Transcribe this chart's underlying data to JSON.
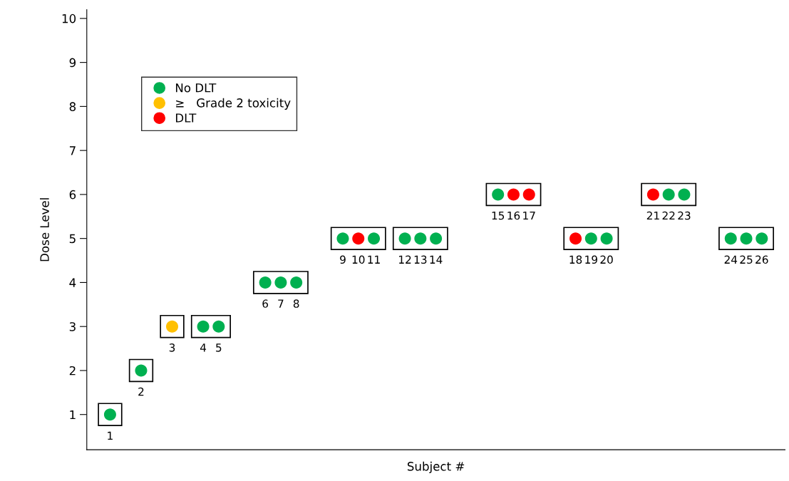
{
  "chart_data": {
    "type": "scatter",
    "xlabel": "Subject #",
    "ylabel": "Dose Level",
    "categories": [
      null,
      null,
      null,
      null,
      null,
      null,
      null,
      null,
      null,
      null,
      null,
      null,
      null,
      null,
      null,
      null,
      null,
      null,
      null,
      null,
      null,
      null,
      null,
      null,
      null,
      null,
      null,
      null,
      null,
      null,
      null,
      null,
      null,
      null,
      null,
      null,
      null,
      null,
      null,
      null,
      null,
      null,
      null,
      null,
      null
    ],
    "ylim": [
      0.2,
      10.2
    ],
    "yticks": [
      1,
      2,
      3,
      4,
      5,
      6,
      7,
      8,
      9,
      10
    ],
    "tick_labels": "y",
    "grid": false,
    "legend": "top left",
    "marker": "circle",
    "series": [
      {
        "name": "No DLT",
        "color": "#00b050",
        "values": [
          null,
          1,
          null,
          2,
          null,
          null,
          null,
          3,
          3,
          null,
          null,
          4,
          4,
          4,
          null,
          null,
          5,
          null,
          5,
          null,
          5,
          5,
          5,
          null,
          null,
          null,
          6,
          null,
          null,
          null,
          null,
          null,
          5,
          5,
          null,
          null,
          null,
          6,
          6,
          null,
          null,
          5,
          5,
          5,
          null
        ]
      },
      {
        "name": "≥   Grade 2 toxicity",
        "color": "#ffc000",
        "values": [
          null,
          null,
          null,
          null,
          null,
          3,
          null,
          null,
          null,
          null,
          null,
          null,
          null,
          null,
          null,
          null,
          null,
          null,
          null,
          null,
          null,
          null,
          null,
          null,
          null,
          null,
          null,
          null,
          null,
          null,
          null,
          null,
          null,
          null,
          null,
          null,
          null,
          null,
          null,
          null,
          null,
          null,
          null,
          null,
          null
        ]
      },
      {
        "name": "DLT",
        "color": "#ff0000",
        "values": [
          null,
          null,
          null,
          null,
          null,
          null,
          null,
          null,
          null,
          null,
          null,
          null,
          null,
          null,
          null,
          null,
          null,
          5,
          null,
          null,
          null,
          null,
          null,
          null,
          null,
          null,
          null,
          6,
          6,
          null,
          null,
          5,
          null,
          null,
          null,
          null,
          6,
          null,
          null,
          null,
          null,
          null,
          null,
          null,
          null
        ]
      }
    ],
    "annotations": [
      {
        "text": "1",
        "y": 1
      },
      {
        "text": "2",
        "y": 2
      },
      {
        "text": "3",
        "y": 3
      },
      {
        "text": "4",
        "y": 3
      },
      {
        "text": "5",
        "y": 3
      },
      {
        "text": "6",
        "y": 4
      },
      {
        "text": "7",
        "y": 4
      },
      {
        "text": "8",
        "y": 4
      },
      {
        "text": "9",
        "y": 5
      },
      {
        "text": "10",
        "y": 5
      },
      {
        "text": "11",
        "y": 5
      },
      {
        "text": "12",
        "y": 5
      },
      {
        "text": "13",
        "y": 5
      },
      {
        "text": "14",
        "y": 5
      },
      {
        "text": "15",
        "y": 6
      },
      {
        "text": "16",
        "y": 6
      },
      {
        "text": "17",
        "y": 6
      },
      {
        "text": "18",
        "y": 5
      },
      {
        "text": "19",
        "y": 5
      },
      {
        "text": "20",
        "y": 5
      },
      {
        "text": "21",
        "y": 6
      },
      {
        "text": "22",
        "y": 6
      },
      {
        "text": "23",
        "y": 6
      },
      {
        "text": "24",
        "y": 5
      },
      {
        "text": "25",
        "y": 5
      },
      {
        "text": "26",
        "y": 5
      }
    ]
  }
}
